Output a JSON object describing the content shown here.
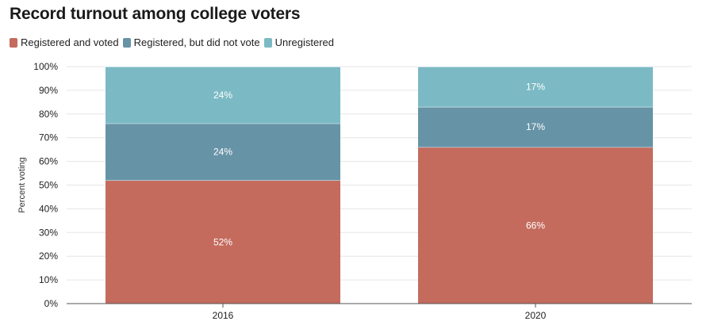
{
  "title": "Record turnout among college voters",
  "legend": [
    {
      "label": "Registered and voted",
      "color": "#c46b5e"
    },
    {
      "label": "Registered, but did not vote",
      "color": "#6793a6"
    },
    {
      "label": "Unregistered",
      "color": "#7bbac4"
    }
  ],
  "chart_data": {
    "type": "bar",
    "stacked": true,
    "title": "Record turnout among college voters",
    "xlabel": "",
    "ylabel": "Percent voting",
    "ylim": [
      0,
      100
    ],
    "yticks": [
      "0%",
      "10%",
      "20%",
      "30%",
      "40%",
      "50%",
      "60%",
      "70%",
      "80%",
      "90%",
      "100%"
    ],
    "categories": [
      "2016",
      "2020"
    ],
    "series": [
      {
        "name": "Registered and voted",
        "values": [
          52,
          66
        ],
        "labels": [
          "52%",
          "66%"
        ],
        "color": "#c46b5e"
      },
      {
        "name": "Registered, but did not vote",
        "values": [
          24,
          17
        ],
        "labels": [
          "24%",
          "17%"
        ],
        "color": "#6793a6"
      },
      {
        "name": "Unregistered",
        "values": [
          24,
          17
        ],
        "labels": [
          "24%",
          "17%"
        ],
        "color": "#7bbac4"
      }
    ],
    "grid": true,
    "legend_position": "top-left"
  }
}
